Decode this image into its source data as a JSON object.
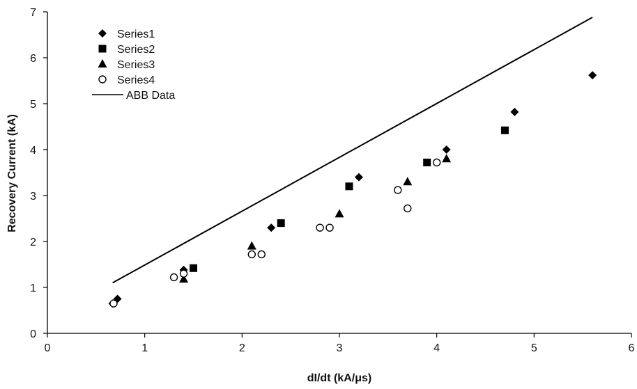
{
  "chart_data": {
    "type": "scatter",
    "title": "",
    "xlabel": "dI/dt (kA/μs)",
    "ylabel": "Recovery Current (kA)",
    "xlim": [
      0,
      6
    ],
    "ylim": [
      0,
      7
    ],
    "xticks": [
      0,
      1,
      2,
      3,
      4,
      5,
      6
    ],
    "yticks": [
      0,
      1,
      2,
      3,
      4,
      5,
      6,
      7
    ],
    "grid": false,
    "legend_position": "top-left",
    "series": [
      {
        "name": "Series1",
        "marker": "diamond",
        "color": "#000000",
        "points": [
          [
            0.67,
            0.65
          ],
          [
            0.72,
            0.75
          ],
          [
            1.4,
            1.38
          ],
          [
            2.3,
            2.3
          ],
          [
            3.2,
            3.4
          ],
          [
            4.1,
            4.0
          ],
          [
            4.8,
            4.82
          ],
          [
            5.6,
            5.62
          ]
        ]
      },
      {
        "name": "Series2",
        "marker": "square",
        "color": "#000000",
        "points": [
          [
            1.5,
            1.42
          ],
          [
            2.4,
            2.4
          ],
          [
            3.1,
            3.2
          ],
          [
            3.9,
            3.72
          ],
          [
            4.7,
            4.42
          ]
        ]
      },
      {
        "name": "Series3",
        "marker": "triangle",
        "color": "#000000",
        "points": [
          [
            1.4,
            1.18
          ],
          [
            2.1,
            1.9
          ],
          [
            3.0,
            2.6
          ],
          [
            3.7,
            3.3
          ],
          [
            4.1,
            3.8
          ]
        ]
      },
      {
        "name": "Series4",
        "marker": "circle-open",
        "color": "#000000",
        "points": [
          [
            0.68,
            0.65
          ],
          [
            1.3,
            1.22
          ],
          [
            1.4,
            1.3
          ],
          [
            2.1,
            1.72
          ],
          [
            2.2,
            1.72
          ],
          [
            2.8,
            2.3
          ],
          [
            2.9,
            2.3
          ],
          [
            3.6,
            3.12
          ],
          [
            3.7,
            2.72
          ],
          [
            4.0,
            3.72
          ]
        ]
      },
      {
        "name": "ABB Data",
        "marker": "line",
        "color": "#000000",
        "points": [
          [
            0.67,
            1.1
          ],
          [
            5.6,
            6.88
          ]
        ]
      }
    ]
  }
}
